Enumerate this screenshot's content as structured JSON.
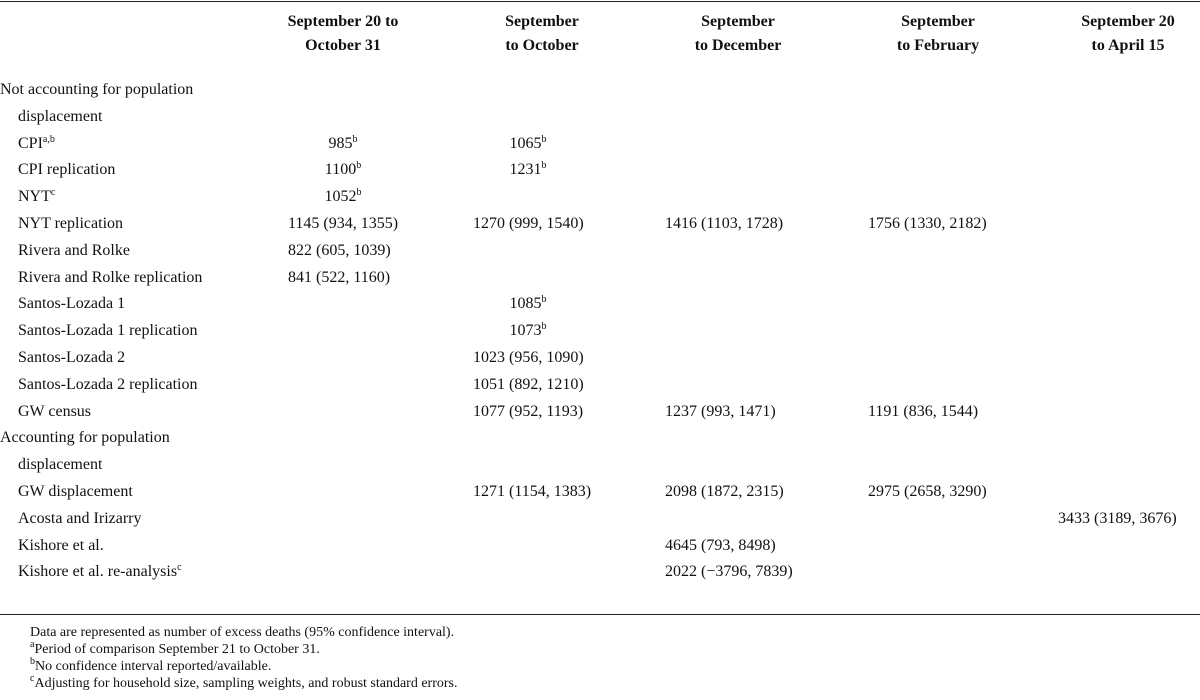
{
  "header": {
    "columns": [
      {
        "lines": [
          "September 20 to",
          "October 31"
        ]
      },
      {
        "lines": [
          "September",
          "to October"
        ]
      },
      {
        "lines": [
          "September",
          "to December"
        ]
      },
      {
        "lines": [
          "September",
          "to February"
        ]
      },
      {
        "lines": [
          "September 20",
          "to April 15"
        ]
      }
    ]
  },
  "sections": [
    {
      "title": "Not accounting for population displacement",
      "rows": [
        {
          "label": {
            "text": "CPI",
            "sup": "a,b"
          },
          "cells": [
            {
              "text": "985",
              "sup": "b"
            },
            {
              "text": "1065",
              "sup": "b"
            },
            null,
            null,
            null
          ]
        },
        {
          "label": {
            "text": "CPI replication"
          },
          "cells": [
            {
              "text": "1100",
              "sup": "b"
            },
            {
              "text": "1231",
              "sup": "b"
            },
            null,
            null,
            null
          ]
        },
        {
          "label": {
            "text": "NYT",
            "sup": "c"
          },
          "cells": [
            {
              "text": "1052",
              "sup": "b"
            },
            null,
            null,
            null,
            null
          ]
        },
        {
          "label": {
            "text": "NYT replication"
          },
          "cells": [
            {
              "text": "1145 (934, 1355)"
            },
            {
              "text": "1270 (999, 1540)"
            },
            {
              "text": "1416 (1103, 1728)"
            },
            {
              "text": "1756 (1330, 2182)"
            },
            null
          ]
        },
        {
          "label": {
            "text": "Rivera and Rolke"
          },
          "cells": [
            {
              "text": "822 (605, 1039)"
            },
            null,
            null,
            null,
            null
          ]
        },
        {
          "label": {
            "text": "Rivera and Rolke replication"
          },
          "cells": [
            {
              "text": "841 (522, 1160)"
            },
            null,
            null,
            null,
            null
          ]
        },
        {
          "label": {
            "text": "Santos-Lozada 1"
          },
          "cells": [
            null,
            {
              "text": "1085",
              "sup": "b"
            },
            null,
            null,
            null
          ]
        },
        {
          "label": {
            "text": "Santos-Lozada 1 replication"
          },
          "cells": [
            null,
            {
              "text": "1073",
              "sup": "b"
            },
            null,
            null,
            null
          ]
        },
        {
          "label": {
            "text": "Santos-Lozada 2"
          },
          "cells": [
            null,
            {
              "text": "1023 (956, 1090)"
            },
            null,
            null,
            null
          ]
        },
        {
          "label": {
            "text": "Santos-Lozada 2 replication"
          },
          "cells": [
            null,
            {
              "text": "1051 (892, 1210)"
            },
            null,
            null,
            null
          ]
        },
        {
          "label": {
            "text": "GW census"
          },
          "cells": [
            null,
            {
              "text": "1077 (952, 1193)"
            },
            {
              "text": "1237 (993, 1471)"
            },
            {
              "text": "1191 (836, 1544)"
            },
            null
          ]
        }
      ]
    },
    {
      "title": "Accounting for population displacement",
      "rows": [
        {
          "label": {
            "text": "GW displacement"
          },
          "cells": [
            null,
            {
              "text": "1271 (1154, 1383)"
            },
            {
              "text": "2098 (1872, 2315)"
            },
            {
              "text": "2975 (2658, 3290)"
            },
            null
          ]
        },
        {
          "label": {
            "text": "Acosta and Irizarry"
          },
          "cells": [
            null,
            null,
            null,
            null,
            {
              "text": "3433 (3189, 3676)"
            }
          ]
        },
        {
          "label": {
            "text": "Kishore et al."
          },
          "cells": [
            null,
            null,
            {
              "text": "4645 (793, 8498)"
            },
            null,
            null
          ]
        },
        {
          "label": {
            "text": "Kishore et al. re-analysis",
            "sup": "c"
          },
          "cells": [
            null,
            null,
            {
              "text": "2022 (−3796, 7839)"
            },
            null,
            null
          ]
        }
      ]
    }
  ],
  "footnotes": [
    {
      "text": "Data are represented as number of excess deaths (95% confidence interval)."
    },
    {
      "sup": "a",
      "text": "Period of comparison September 21 to October 31."
    },
    {
      "sup": "b",
      "text": "No confidence interval reported/available."
    },
    {
      "sup": "c",
      "text": "Adjusting for household size, sampling weights, and robust standard errors."
    }
  ]
}
